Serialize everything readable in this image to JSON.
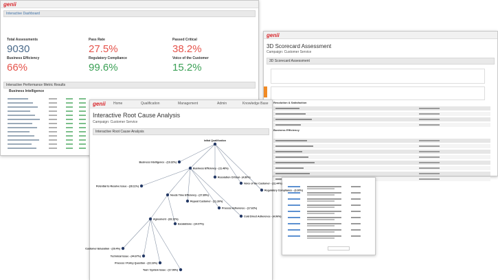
{
  "dashboard": {
    "logo": "genii",
    "title": "Interactive Dashboard",
    "kpis": [
      {
        "label": "Total Assessments",
        "value": "9030"
      },
      {
        "label": "Pass Rate",
        "value": "27.5%"
      },
      {
        "label": "Passed Critical",
        "value": "38.2%"
      },
      {
        "label": "Business Efficiency",
        "value": "66%"
      },
      {
        "label": "Regulatory Compliance",
        "value": "99.6%"
      },
      {
        "label": "Voice of the Customer",
        "value": "15.2%"
      }
    ],
    "section": "Interactive Performance Metric Results",
    "subsection": "Business Intelligence"
  },
  "scorecard": {
    "logo": "genii",
    "title": "3D Scorecard Assessment",
    "campaign": "Campaign: Customer Service",
    "bar": "3D Scorecard Assessment",
    "sections": [
      "Resolution & Satisfaction",
      "Business Efficiency"
    ]
  },
  "root_cause": {
    "logo": "genii",
    "nav": [
      "Home",
      "Qualification",
      "Management",
      "Admin",
      "Knowledge Base"
    ],
    "title": "Interactive Root Cause Analysis",
    "campaign": "Campaign: Customer Service",
    "bar": "Interactive Root Cause Analysis",
    "nodes": [
      {
        "label": "Initial Qualification"
      },
      {
        "label": "Business Intelligence - (19.32%)"
      },
      {
        "label": "Business Efficiency - (11.48%)"
      },
      {
        "label": "Resolution Critical - (4.89%)"
      },
      {
        "label": "Voice of the Customer - (12.44%)"
      },
      {
        "label": "Regulatory Compliance - (3.00%)"
      },
      {
        "label": "Potential to Resolve Issue - (28.11%)"
      },
      {
        "label": "Needs Time Efficiency - (27.89%)"
      },
      {
        "label": "Repeat Customer - (11.26%)"
      },
      {
        "label": "Process Adherence - (17.62%)"
      },
      {
        "label": "Cold Direct Adherence - (4.06%)"
      },
      {
        "label": "Agreement - (33.12%)"
      },
      {
        "label": "Escalations - (14.07%)"
      },
      {
        "label": "Customer Education - (29.4%)"
      },
      {
        "label": "Technical Issue - (44.67%)"
      },
      {
        "label": "Process / Policy Question - (22.16%)"
      },
      {
        "label": "Tool / System Issue - (17.06%)"
      }
    ]
  }
}
